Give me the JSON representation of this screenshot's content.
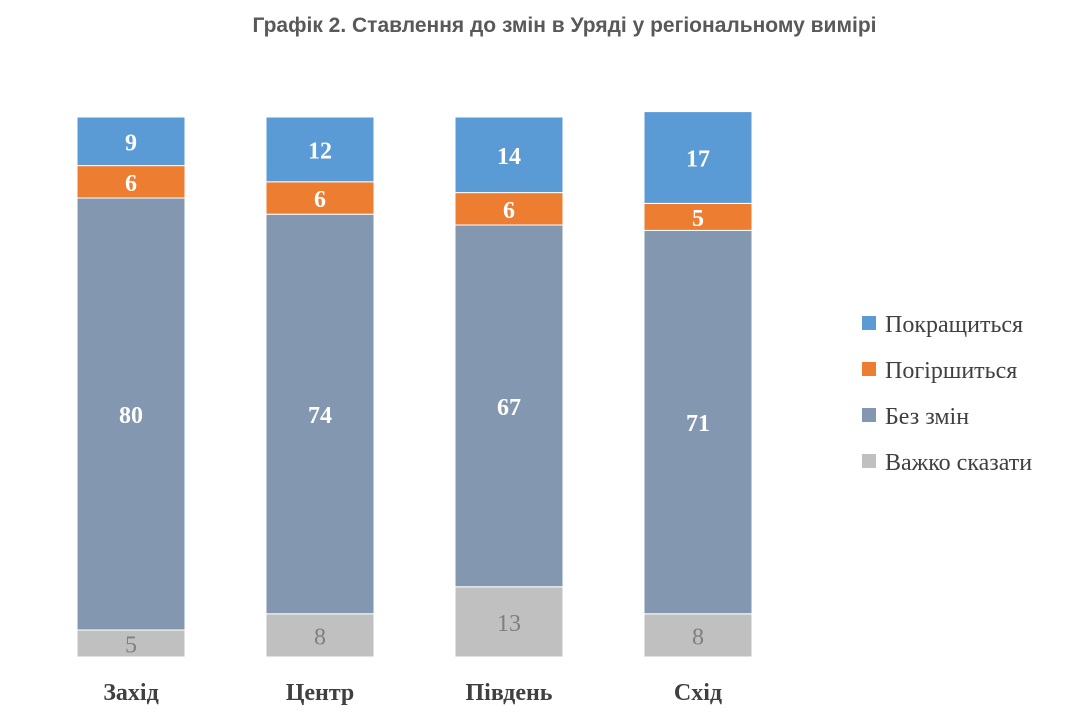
{
  "chart_data": {
    "type": "bar",
    "stacked": true,
    "title": "Графік 2. Ставлення до змін в Уряді у регіональному вимірі",
    "categories": [
      "Захід",
      "Центр",
      "Південь",
      "Схід"
    ],
    "series": [
      {
        "name": "Важко сказати",
        "values": [
          5,
          8,
          13,
          8
        ],
        "color": "#c0c0c0"
      },
      {
        "name": "Без змін",
        "values": [
          80,
          74,
          67,
          71
        ],
        "color": "#8497b0"
      },
      {
        "name": "Погіршиться",
        "values": [
          6,
          6,
          6,
          5
        ],
        "color": "#ed7d31"
      },
      {
        "name": "Покращиться",
        "values": [
          9,
          12,
          14,
          17
        ],
        "color": "#5b9bd5"
      }
    ],
    "legend_order": [
      "Покращиться",
      "Погіршиться",
      "Без змін",
      "Важко сказати"
    ],
    "legend_position": "right",
    "ylim": [
      0,
      100
    ],
    "grid": false
  }
}
